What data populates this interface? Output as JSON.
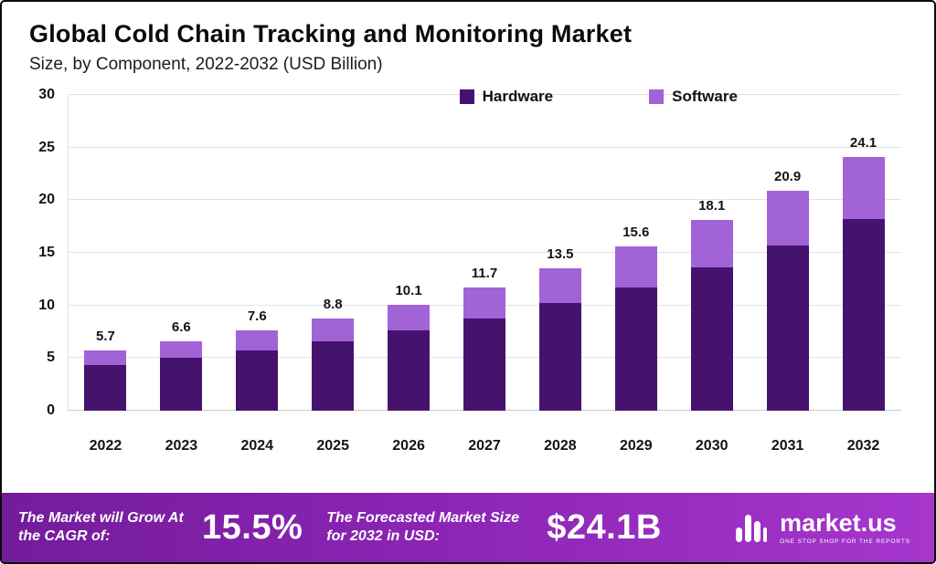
{
  "header": {
    "title": "Global Cold Chain Tracking and Monitoring Market",
    "subtitle": "Size, by Component, 2022-2032 (USD Billion)"
  },
  "chart_data": {
    "type": "bar",
    "stacked": true,
    "title": "Global Cold Chain Tracking and Monitoring Market Size, by Component, 2022-2032 (USD Billion)",
    "categories": [
      "2022",
      "2023",
      "2024",
      "2025",
      "2026",
      "2027",
      "2028",
      "2029",
      "2030",
      "2031",
      "2032"
    ],
    "series": [
      {
        "name": "Hardware",
        "color": "#45136e",
        "values": [
          4.3,
          5.0,
          5.7,
          6.6,
          7.6,
          8.8,
          10.2,
          11.7,
          13.6,
          15.7,
          18.2
        ]
      },
      {
        "name": "Software",
        "color": "#a263d6",
        "values": [
          1.4,
          1.6,
          1.9,
          2.2,
          2.5,
          2.9,
          3.3,
          3.9,
          4.5,
          5.2,
          5.9
        ]
      }
    ],
    "totals": [
      "5.7",
      "6.6",
      "7.6",
      "8.8",
      "10.1",
      "11.7",
      "13.5",
      "15.6",
      "18.1",
      "20.9",
      "24.1"
    ],
    "ylim": [
      0,
      30
    ],
    "yticks": [
      0,
      5,
      10,
      15,
      20,
      25,
      30
    ],
    "grid": true,
    "legend_position": "top"
  },
  "banner": {
    "cagr_label": "The Market will Grow At the CAGR of:",
    "cagr_value": "15.5%",
    "forecast_label": "The Forecasted Market Size for 2032 in USD:",
    "forecast_value": "$24.1B",
    "brand": "market.us",
    "brand_tagline": "ONE STOP SHOP FOR THE REPORTS"
  }
}
